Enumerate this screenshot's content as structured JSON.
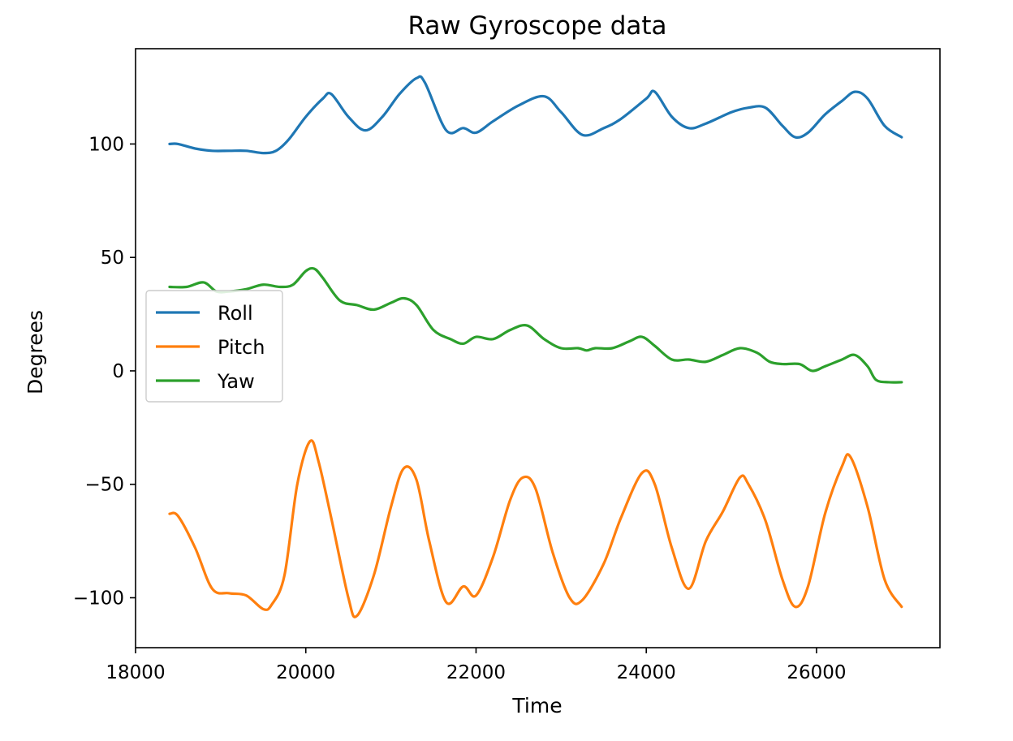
{
  "chart_data": {
    "type": "line",
    "title": "Raw Gyroscope data",
    "xlabel": "Time",
    "ylabel": "Degrees",
    "xlim": [
      18000,
      27450
    ],
    "ylim": [
      -122,
      142
    ],
    "xticks": [
      18000,
      20000,
      22000,
      24000,
      26000
    ],
    "xtick_labels": [
      "18000",
      "20000",
      "22000",
      "24000",
      "26000"
    ],
    "yticks": [
      100,
      50,
      0,
      -50,
      -100
    ],
    "ytick_labels": [
      "100",
      "50",
      "0",
      "−50",
      "−100"
    ],
    "grid": false,
    "legend_position": "center-left",
    "series": [
      {
        "name": "Roll",
        "color": "#1f77b4",
        "x": [
          18400,
          18500,
          18700,
          18900,
          19100,
          19300,
          19500,
          19650,
          19800,
          20000,
          20200,
          20300,
          20500,
          20700,
          20900,
          21100,
          21300,
          21400,
          21650,
          21850,
          22000,
          22200,
          22500,
          22800,
          23000,
          23250,
          23500,
          23700,
          24000,
          24100,
          24300,
          24500,
          24700,
          25000,
          25200,
          25400,
          25600,
          25750,
          25900,
          26100,
          26300,
          26450,
          26600,
          26800,
          27000
        ],
        "values": [
          100,
          100,
          98,
          97,
          97,
          97,
          96,
          97,
          102,
          112,
          120,
          122,
          112,
          106,
          112,
          122,
          129,
          127,
          106,
          107,
          105,
          110,
          117,
          121,
          114,
          104,
          107,
          111,
          120,
          123,
          112,
          107,
          109,
          114,
          116,
          116,
          108,
          103,
          105,
          113,
          119,
          123,
          120,
          108,
          103
        ]
      },
      {
        "name": "Pitch",
        "color": "#ff7f0e",
        "x": [
          18400,
          18500,
          18700,
          18900,
          19100,
          19300,
          19500,
          19600,
          19750,
          19900,
          20050,
          20150,
          20300,
          20500,
          20600,
          20800,
          21000,
          21150,
          21300,
          21450,
          21650,
          21850,
          22000,
          22200,
          22400,
          22550,
          22700,
          22900,
          23100,
          23250,
          23500,
          23700,
          23950,
          24100,
          24300,
          24500,
          24700,
          24900,
          25100,
          25200,
          25400,
          25600,
          25750,
          25900,
          26100,
          26300,
          26400,
          26600,
          26800,
          27000
        ],
        "values": [
          -63,
          -64,
          -78,
          -96,
          -98,
          -99,
          -105,
          -103,
          -90,
          -50,
          -31,
          -40,
          -65,
          -100,
          -108,
          -90,
          -60,
          -43,
          -48,
          -75,
          -102,
          -95,
          -99,
          -82,
          -57,
          -47,
          -52,
          -80,
          -100,
          -101,
          -85,
          -65,
          -45,
          -50,
          -78,
          -96,
          -75,
          -62,
          -47,
          -50,
          -66,
          -92,
          -104,
          -95,
          -63,
          -42,
          -38,
          -60,
          -92,
          -104
        ]
      },
      {
        "name": "Yaw",
        "color": "#2ca02c",
        "x": [
          18400,
          18600,
          18800,
          18950,
          19100,
          19300,
          19500,
          19700,
          19850,
          20000,
          20100,
          20200,
          20400,
          20600,
          20800,
          21000,
          21150,
          21300,
          21500,
          21700,
          21850,
          22000,
          22200,
          22400,
          22600,
          22800,
          23000,
          23200,
          23300,
          23400,
          23600,
          23800,
          23950,
          24100,
          24300,
          24500,
          24700,
          24900,
          25100,
          25300,
          25450,
          25600,
          25800,
          25950,
          26100,
          26300,
          26450,
          26600,
          26700,
          26850,
          27000
        ],
        "values": [
          37,
          37,
          39,
          35,
          35,
          36,
          38,
          37,
          38,
          44,
          45,
          41,
          31,
          29,
          27,
          30,
          32,
          29,
          18,
          14,
          12,
          15,
          14,
          18,
          20,
          14,
          10,
          10,
          9,
          10,
          10,
          13,
          15,
          11,
          5,
          5,
          4,
          7,
          10,
          8,
          4,
          3,
          3,
          0,
          2,
          5,
          7,
          2,
          -4,
          -5,
          -5
        ]
      }
    ]
  }
}
